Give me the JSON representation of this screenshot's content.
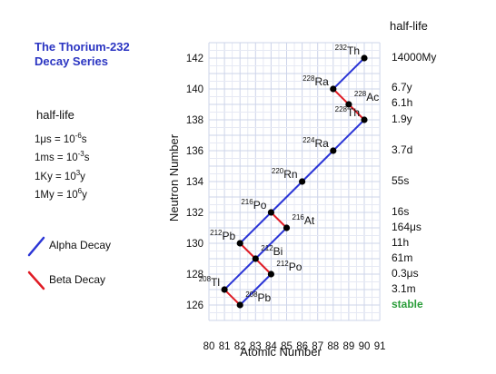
{
  "title_lines": [
    "The Thorium-232",
    "Decay Series"
  ],
  "units_heading": "half-life",
  "units": [
    {
      "text": "1μs = 10",
      "sup": "-6",
      "tail": "s"
    },
    {
      "text": "1ms = 10",
      "sup": "-3",
      "tail": "s"
    },
    {
      "text": "1Ky = 10",
      "sup": "3",
      "tail": "y"
    },
    {
      "text": "1My = 10",
      "sup": "6",
      "tail": "y"
    }
  ],
  "legend": [
    {
      "label": "Alpha Decay",
      "color": "#2b35d6"
    },
    {
      "label": "Beta Decay",
      "color": "#e01b24"
    }
  ],
  "halflife_column_title": "half-life",
  "halflife_values": [
    {
      "text": "14000My",
      "n": 142,
      "status": "normal"
    },
    {
      "text": "6.7y",
      "n": 140.05,
      "status": "normal"
    },
    {
      "text": "6.1h",
      "n": 139.05,
      "status": "normal"
    },
    {
      "text": "1.9y",
      "n": 138,
      "status": "normal"
    },
    {
      "text": "3.7d",
      "n": 136,
      "status": "normal"
    },
    {
      "text": "55s",
      "n": 134,
      "status": "normal"
    },
    {
      "text": "16s",
      "n": 132,
      "status": "normal"
    },
    {
      "text": "164μs",
      "n": 131,
      "status": "normal"
    },
    {
      "text": "11h",
      "n": 130,
      "status": "normal"
    },
    {
      "text": "61m",
      "n": 129,
      "status": "normal"
    },
    {
      "text": "0.3μs",
      "n": 128,
      "status": "normal"
    },
    {
      "text": "3.1m",
      "n": 127,
      "status": "normal"
    },
    {
      "text": "stable",
      "n": 126,
      "status": "stable"
    }
  ],
  "axes": {
    "x_label": "Atomic Number",
    "y_label": "Neutron Number",
    "x_range": [
      80,
      91
    ],
    "y_range": [
      125,
      143
    ],
    "x_ticks": [
      80,
      81,
      82,
      83,
      84,
      85,
      86,
      87,
      88,
      89,
      90,
      91
    ],
    "y_ticks": [
      126,
      128,
      130,
      132,
      134,
      136,
      138,
      140,
      142
    ],
    "grid": true
  },
  "nuclides": [
    {
      "mass": "232",
      "symbol": "Th",
      "z": 90,
      "n": 142,
      "label_side": "left"
    },
    {
      "mass": "228",
      "symbol": "Ra",
      "z": 88,
      "n": 140,
      "label_side": "left"
    },
    {
      "mass": "228",
      "symbol": "Ac",
      "z": 89,
      "n": 139,
      "label_side": "right"
    },
    {
      "mass": "228",
      "symbol": "Th",
      "z": 90,
      "n": 138,
      "label_side": "left"
    },
    {
      "mass": "224",
      "symbol": "Ra",
      "z": 88,
      "n": 136,
      "label_side": "left"
    },
    {
      "mass": "220",
      "symbol": "Rn",
      "z": 86,
      "n": 134,
      "label_side": "left"
    },
    {
      "mass": "216",
      "symbol": "Po",
      "z": 84,
      "n": 132,
      "label_side": "left"
    },
    {
      "mass": "216",
      "symbol": "At",
      "z": 85,
      "n": 131,
      "label_side": "right"
    },
    {
      "mass": "212",
      "symbol": "Pb",
      "z": 82,
      "n": 130,
      "label_side": "left"
    },
    {
      "mass": "212",
      "symbol": "Bi",
      "z": 83,
      "n": 129,
      "label_side": "right"
    },
    {
      "mass": "212",
      "symbol": "Po",
      "z": 84,
      "n": 128,
      "label_side": "right"
    },
    {
      "mass": "208",
      "symbol": "Tl",
      "z": 81,
      "n": 127,
      "label_side": "left"
    },
    {
      "mass": "208",
      "symbol": "Pb",
      "z": 82,
      "n": 126,
      "label_side": "right"
    }
  ],
  "decays": [
    {
      "type": "alpha",
      "from": [
        90,
        142
      ],
      "to": [
        88,
        140
      ]
    },
    {
      "type": "beta",
      "from": [
        88,
        140
      ],
      "to": [
        89,
        139
      ]
    },
    {
      "type": "beta",
      "from": [
        89,
        139
      ],
      "to": [
        90,
        138
      ]
    },
    {
      "type": "alpha",
      "from": [
        90,
        138
      ],
      "to": [
        88,
        136
      ]
    },
    {
      "type": "alpha",
      "from": [
        88,
        136
      ],
      "to": [
        86,
        134
      ]
    },
    {
      "type": "alpha",
      "from": [
        86,
        134
      ],
      "to": [
        84,
        132
      ]
    },
    {
      "type": "beta",
      "from": [
        84,
        132
      ],
      "to": [
        85,
        131
      ]
    },
    {
      "type": "alpha",
      "from": [
        84,
        132
      ],
      "to": [
        82,
        130
      ]
    },
    {
      "type": "alpha",
      "from": [
        85,
        131
      ],
      "to": [
        83,
        129
      ]
    },
    {
      "type": "beta",
      "from": [
        82,
        130
      ],
      "to": [
        83,
        129
      ]
    },
    {
      "type": "alpha",
      "from": [
        83,
        129
      ],
      "to": [
        81,
        127
      ]
    },
    {
      "type": "beta",
      "from": [
        83,
        129
      ],
      "to": [
        84,
        128
      ]
    },
    {
      "type": "beta",
      "from": [
        81,
        127
      ],
      "to": [
        82,
        126
      ]
    },
    {
      "type": "alpha",
      "from": [
        84,
        128
      ],
      "to": [
        82,
        126
      ]
    }
  ]
}
